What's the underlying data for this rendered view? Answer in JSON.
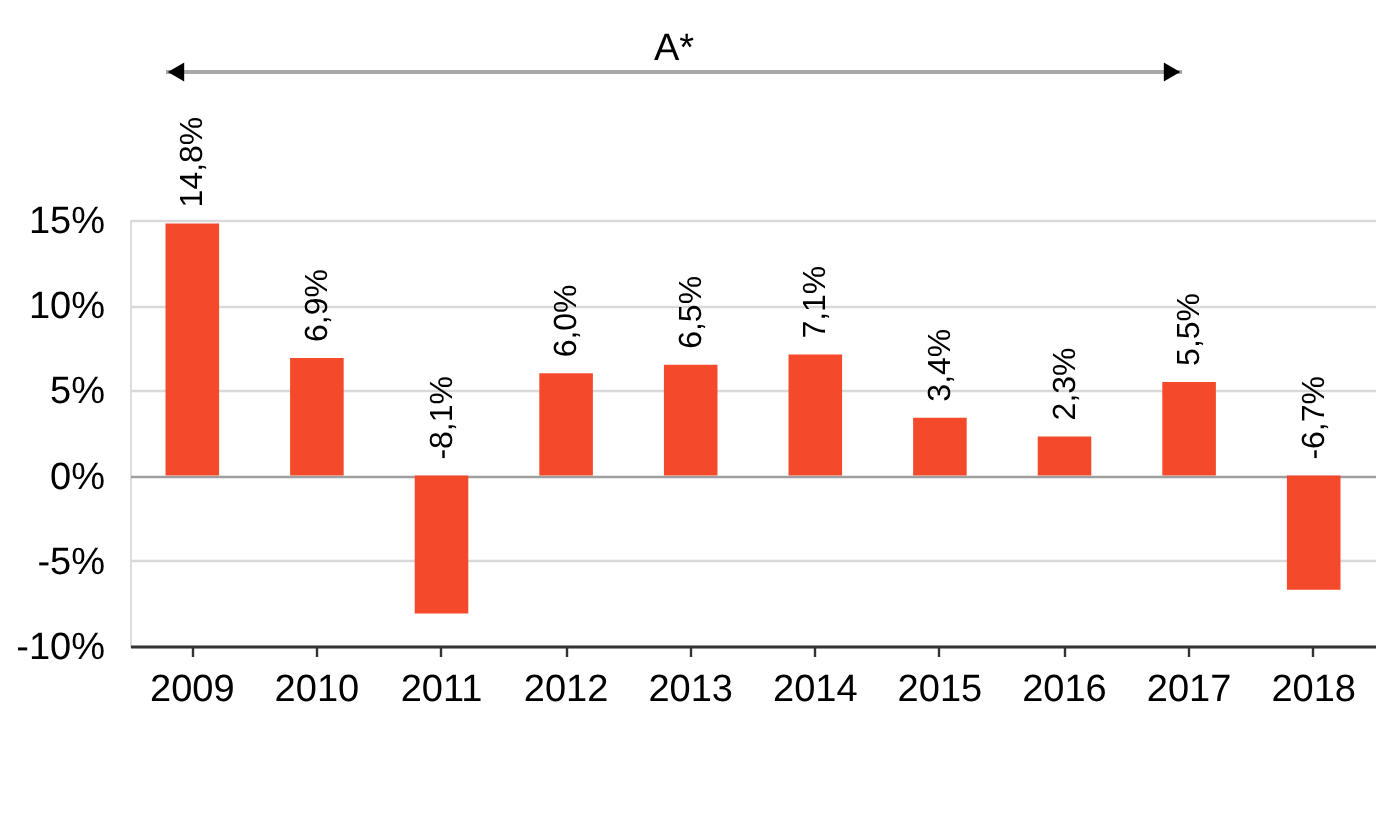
{
  "chart_data": {
    "type": "bar",
    "categories": [
      "2009",
      "2010",
      "2011",
      "2012",
      "2013",
      "2014",
      "2015",
      "2016",
      "2017",
      "2018"
    ],
    "values": [
      14.8,
      6.9,
      -8.1,
      6.0,
      6.5,
      7.1,
      3.4,
      2.3,
      5.5,
      -6.7
    ],
    "color": "#f44a2b",
    "value_labels": [
      "14,8%",
      "6,9%",
      "-8,1%",
      "6,0%",
      "6,5%",
      "7,1%",
      "3,4%",
      "2,3%",
      "5,5%",
      "-6,7%"
    ],
    "ylim": [
      -10,
      15
    ],
    "yticks": [
      {
        "value": -10,
        "label": "-10%"
      },
      {
        "value": -5,
        "label": "-5%"
      },
      {
        "value": 0,
        "label": "0%"
      },
      {
        "value": 5,
        "label": "5%"
      },
      {
        "value": 10,
        "label": "10%"
      },
      {
        "value": 15,
        "label": "15%"
      }
    ],
    "grid": "y",
    "annotations": [
      "A*"
    ]
  }
}
